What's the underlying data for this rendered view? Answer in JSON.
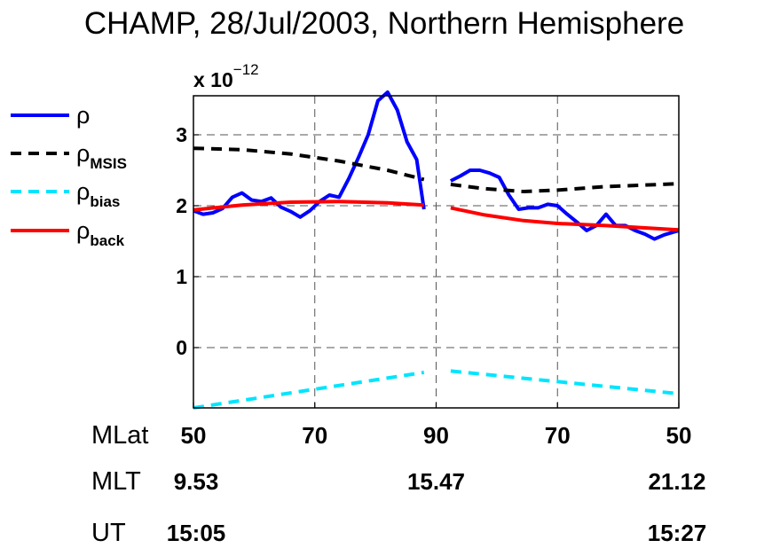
{
  "chart_data": {
    "type": "line",
    "title": "CHAMP, 28/Jul/2003, Northern Hemisphere",
    "y_exponent_label": "x 10",
    "y_exponent": "−12",
    "ylim": [
      -0.85,
      3.55
    ],
    "y_ticks": [
      "3",
      "2",
      "1",
      "0"
    ],
    "grid": true,
    "legend_position": "left",
    "x_domain": [
      0,
      100
    ],
    "x_ticks": [
      {
        "x": 0,
        "label": "50"
      },
      {
        "x": 25,
        "label": "70"
      },
      {
        "x": 50,
        "label": "90"
      },
      {
        "x": 75,
        "label": "70"
      },
      {
        "x": 100,
        "label": "50"
      }
    ],
    "bottom_rows": [
      {
        "name": "MLat",
        "values": [
          {
            "x": 0,
            "text": "50"
          },
          {
            "x": 25,
            "text": "70"
          },
          {
            "x": 50,
            "text": "90"
          },
          {
            "x": 75,
            "text": "70"
          },
          {
            "x": 100,
            "text": "50"
          }
        ]
      },
      {
        "name": "MLT",
        "values": [
          {
            "x": 0,
            "text": "9.53"
          },
          {
            "x": 50,
            "text": "15.47"
          },
          {
            "x": 100,
            "text": "21.12"
          }
        ]
      },
      {
        "name": "UT",
        "values": [
          {
            "x": 0,
            "text": "15:05"
          },
          {
            "x": 100,
            "text": "15:27"
          }
        ]
      }
    ],
    "series": [
      {
        "name": "ρ",
        "color": "#0000ff",
        "dash": "solid",
        "segments": [
          [
            [
              0,
              1.93
            ],
            [
              2,
              1.88
            ],
            [
              4,
              1.9
            ],
            [
              6,
              1.96
            ],
            [
              8,
              2.12
            ],
            [
              10,
              2.18
            ],
            [
              12,
              2.08
            ],
            [
              14,
              2.06
            ],
            [
              16,
              2.11
            ],
            [
              18,
              1.98
            ],
            [
              20,
              1.92
            ],
            [
              22,
              1.84
            ],
            [
              24,
              1.93
            ],
            [
              26,
              2.06
            ],
            [
              28,
              2.15
            ],
            [
              30,
              2.12
            ],
            [
              32,
              2.38
            ],
            [
              34,
              2.68
            ],
            [
              36,
              3.0
            ],
            [
              38,
              3.48
            ],
            [
              40,
              3.6
            ],
            [
              42,
              3.35
            ],
            [
              44,
              2.9
            ],
            [
              46,
              2.65
            ],
            [
              47.5,
              1.95
            ]
          ],
          [
            [
              53,
              2.35
            ],
            [
              55,
              2.42
            ],
            [
              57,
              2.5
            ],
            [
              59,
              2.5
            ],
            [
              61,
              2.46
            ],
            [
              63,
              2.4
            ],
            [
              65,
              2.15
            ],
            [
              67,
              1.95
            ],
            [
              69,
              1.97
            ],
            [
              71,
              1.97
            ],
            [
              73,
              2.02
            ],
            [
              75,
              2.0
            ],
            [
              77,
              1.88
            ],
            [
              79,
              1.77
            ],
            [
              81,
              1.65
            ],
            [
              83,
              1.72
            ],
            [
              85,
              1.88
            ],
            [
              87,
              1.72
            ],
            [
              89,
              1.72
            ],
            [
              91,
              1.65
            ],
            [
              93,
              1.6
            ],
            [
              95,
              1.53
            ],
            [
              97,
              1.59
            ],
            [
              100,
              1.65
            ]
          ]
        ]
      },
      {
        "name": "ρMSIS",
        "color": "#000000",
        "dash": "dashed",
        "segments": [
          [
            [
              0,
              2.81
            ],
            [
              10,
              2.79
            ],
            [
              20,
              2.73
            ],
            [
              30,
              2.63
            ],
            [
              40,
              2.5
            ],
            [
              47.5,
              2.37
            ]
          ],
          [
            [
              53,
              2.3
            ],
            [
              60,
              2.24
            ],
            [
              68,
              2.2
            ],
            [
              75,
              2.22
            ],
            [
              85,
              2.27
            ],
            [
              100,
              2.31
            ]
          ]
        ]
      },
      {
        "name": "ρbias",
        "color": "#00e5ff",
        "dash": "dashed",
        "segments": [
          [
            [
              0,
              -0.85
            ],
            [
              47.5,
              -0.35
            ]
          ],
          [
            [
              53,
              -0.33
            ],
            [
              100,
              -0.65
            ]
          ]
        ]
      },
      {
        "name": "ρback",
        "color": "#ff0000",
        "dash": "solid",
        "segments": [
          [
            [
              0,
              1.94
            ],
            [
              10,
              2.01
            ],
            [
              20,
              2.05
            ],
            [
              30,
              2.06
            ],
            [
              40,
              2.04
            ],
            [
              47.5,
              2.01
            ]
          ],
          [
            [
              53,
              1.97
            ],
            [
              60,
              1.87
            ],
            [
              68,
              1.79
            ],
            [
              75,
              1.75
            ],
            [
              85,
              1.72
            ],
            [
              100,
              1.66
            ]
          ]
        ]
      }
    ]
  },
  "legend": [
    {
      "base": "ρ",
      "sub": ""
    },
    {
      "base": "ρ",
      "sub": "MSIS"
    },
    {
      "base": "ρ",
      "sub": "bias"
    },
    {
      "base": "ρ",
      "sub": "back"
    }
  ]
}
